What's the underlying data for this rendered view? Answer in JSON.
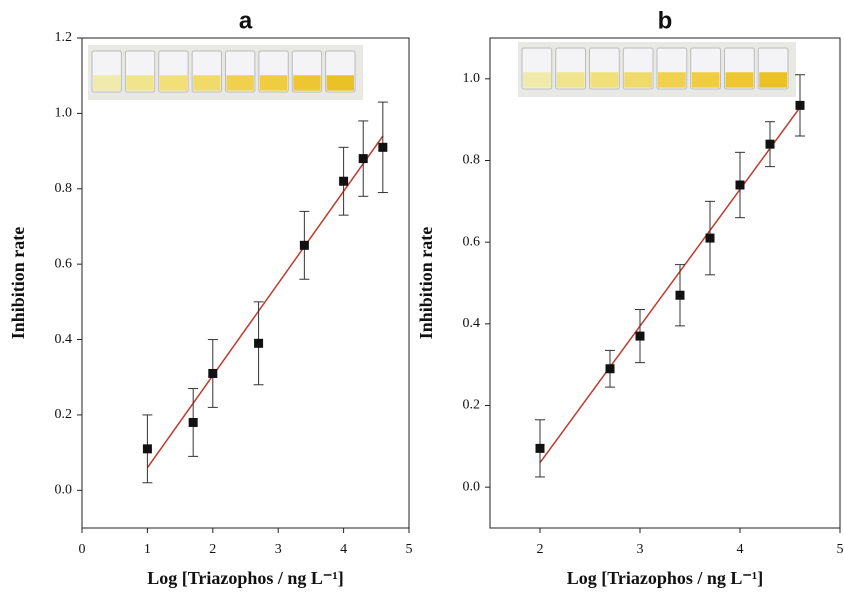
{
  "chart_data": [
    {
      "type": "scatter",
      "title": "a",
      "xlabel": "Log [Triazophos / ng L⁻¹]",
      "ylabel": "Inhibition rate",
      "x": [
        1,
        1.7,
        2,
        2.7,
        3.4,
        4,
        4.3,
        4.6
      ],
      "values": [
        0.11,
        0.18,
        0.31,
        0.39,
        0.65,
        0.82,
        0.88,
        0.91
      ],
      "errors": [
        0.09,
        0.09,
        0.09,
        0.11,
        0.09,
        0.09,
        0.1,
        0.12
      ],
      "fit_x": [
        1,
        4.6
      ],
      "fit_y": [
        0.06,
        0.94
      ],
      "color": "#111111",
      "fit_color": "#c0392b",
      "xlim": [
        0,
        5
      ],
      "ylim": [
        -0.1,
        1.2
      ],
      "xticks": [
        0,
        1,
        2,
        3,
        4,
        5
      ],
      "yticks": [
        {
          "value": 0,
          "label": "0.0"
        },
        {
          "value": 0.2,
          "label": "0.2"
        },
        {
          "value": 0.4,
          "label": "0.4"
        },
        {
          "value": 0.6,
          "label": "0.6"
        },
        {
          "value": 0.8,
          "label": "0.8"
        },
        {
          "value": 1,
          "label": "1.0"
        },
        {
          "value": 1.2,
          "label": "1.2"
        }
      ]
    },
    {
      "type": "scatter",
      "title": "b",
      "xlabel": "Log [Triazophos / ng L⁻¹]",
      "ylabel": "Inhibition rate",
      "x": [
        2,
        2.7,
        3,
        3.4,
        3.7,
        4,
        4.3,
        4.6
      ],
      "values": [
        0.095,
        0.29,
        0.37,
        0.47,
        0.61,
        0.74,
        0.84,
        0.935
      ],
      "errors": [
        0.07,
        0.045,
        0.065,
        0.075,
        0.09,
        0.08,
        0.055,
        0.075
      ],
      "fit_x": [
        2,
        4.6
      ],
      "fit_y": [
        0.06,
        0.93
      ],
      "color": "#111111",
      "fit_color": "#c0392b",
      "xlim": [
        1.5,
        5
      ],
      "ylim": [
        -0.1,
        1.1
      ],
      "xticks": [
        2,
        3,
        4,
        5
      ],
      "yticks": [
        {
          "value": 0,
          "label": "0.0"
        },
        {
          "value": 0.2,
          "label": "0.2"
        },
        {
          "value": 0.4,
          "label": "0.4"
        },
        {
          "value": 0.6,
          "label": "0.6"
        },
        {
          "value": 0.8,
          "label": "0.8"
        },
        {
          "value": 1,
          "label": "1.0"
        }
      ]
    }
  ]
}
